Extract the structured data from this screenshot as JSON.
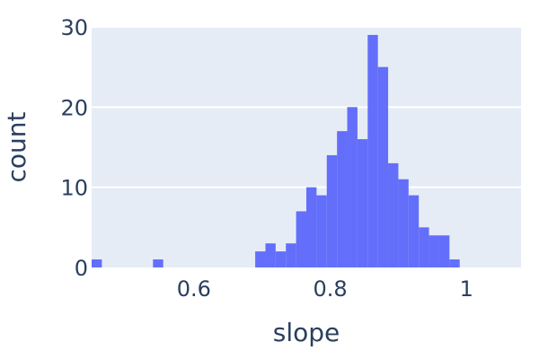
{
  "chart_data": {
    "type": "histogram",
    "xlabel": "slope",
    "ylabel": "count",
    "bin_width": 0.015,
    "x_range": [
      0.45,
      1.08
    ],
    "ylim": [
      0,
      30
    ],
    "grid": true,
    "x_ticks": [
      {
        "value": 0.6,
        "label": "0.6"
      },
      {
        "value": 0.8,
        "label": "0.8"
      },
      {
        "value": 1.0,
        "label": "1"
      }
    ],
    "y_ticks": [
      {
        "value": 0,
        "label": "0"
      },
      {
        "value": 10,
        "label": "10"
      },
      {
        "value": 20,
        "label": "20"
      },
      {
        "value": 30,
        "label": "30"
      }
    ],
    "bins": [
      {
        "x0": 0.45,
        "x1": 0.465,
        "count": 1
      },
      {
        "x0": 0.54,
        "x1": 0.555,
        "count": 1
      },
      {
        "x0": 0.69,
        "x1": 0.705,
        "count": 2
      },
      {
        "x0": 0.705,
        "x1": 0.72,
        "count": 3
      },
      {
        "x0": 0.72,
        "x1": 0.735,
        "count": 2
      },
      {
        "x0": 0.735,
        "x1": 0.75,
        "count": 3
      },
      {
        "x0": 0.75,
        "x1": 0.765,
        "count": 7
      },
      {
        "x0": 0.765,
        "x1": 0.78,
        "count": 10
      },
      {
        "x0": 0.78,
        "x1": 0.795,
        "count": 9
      },
      {
        "x0": 0.795,
        "x1": 0.81,
        "count": 14
      },
      {
        "x0": 0.81,
        "x1": 0.825,
        "count": 17
      },
      {
        "x0": 0.825,
        "x1": 0.84,
        "count": 20
      },
      {
        "x0": 0.84,
        "x1": 0.855,
        "count": 16
      },
      {
        "x0": 0.855,
        "x1": 0.87,
        "count": 29
      },
      {
        "x0": 0.87,
        "x1": 0.885,
        "count": 25
      },
      {
        "x0": 0.885,
        "x1": 0.9,
        "count": 13
      },
      {
        "x0": 0.9,
        "x1": 0.915,
        "count": 11
      },
      {
        "x0": 0.915,
        "x1": 0.93,
        "count": 9
      },
      {
        "x0": 0.93,
        "x1": 0.945,
        "count": 5
      },
      {
        "x0": 0.945,
        "x1": 0.96,
        "count": 4
      },
      {
        "x0": 0.96,
        "x1": 0.975,
        "count": 4
      },
      {
        "x0": 0.975,
        "x1": 0.99,
        "count": 1
      }
    ],
    "colors": {
      "bar": "#636efa",
      "plot_bg": "#e5ecf6",
      "grid": "#ffffff",
      "text": "#2a3f5f"
    }
  }
}
